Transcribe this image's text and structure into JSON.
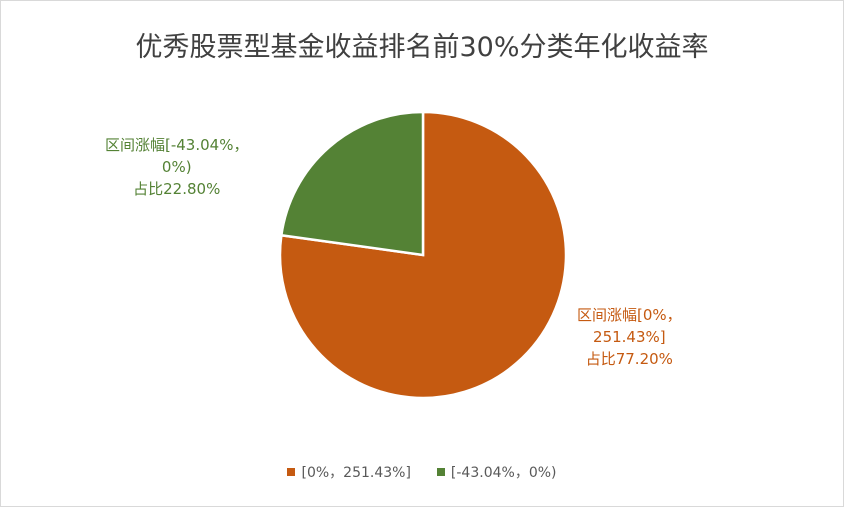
{
  "chart_data": {
    "type": "pie",
    "title": "优秀股票型基金收益排名前30%分类年化收益率",
    "slices": [
      {
        "name": "[0%，251.43%]",
        "value": 77.2,
        "color": "#C55A11",
        "label_line1": "区间涨幅[0%，",
        "label_line2": "251.43%]",
        "label_line3": "占比77.20%"
      },
      {
        "name": "[-43.04%，0%)",
        "value": 22.8,
        "color": "#548235",
        "label_line1": "区间涨幅[-43.04%，",
        "label_line2": "0%)",
        "label_line3": "占比22.80%"
      }
    ],
    "legend_position": "bottom"
  }
}
